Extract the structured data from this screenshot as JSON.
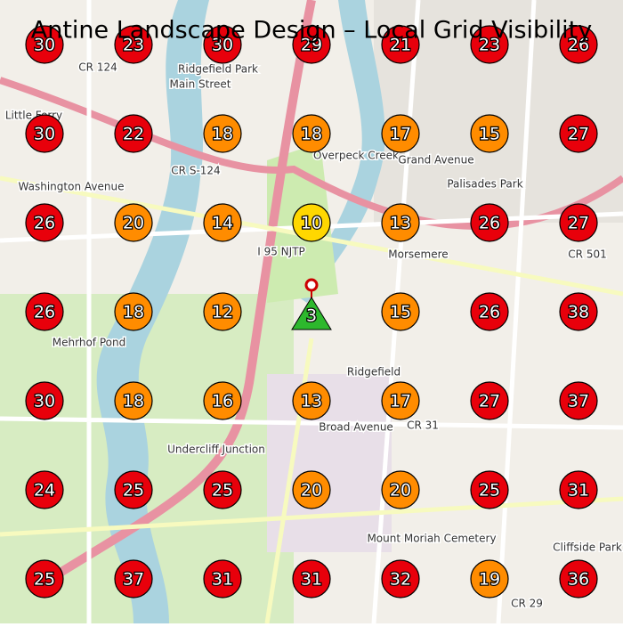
{
  "title": "Antine Landscape Design – Local Grid Visibility",
  "grid": {
    "rows": [
      [
        {
          "value": 30,
          "color": "#e8000b"
        },
        {
          "value": 23,
          "color": "#e8000b"
        },
        {
          "value": 30,
          "color": "#e8000b"
        },
        {
          "value": 29,
          "color": "#e8000b"
        },
        {
          "value": 21,
          "color": "#e8000b"
        },
        {
          "value": 23,
          "color": "#e8000b"
        },
        {
          "value": 26,
          "color": "#e8000b"
        }
      ],
      [
        {
          "value": 30,
          "color": "#e8000b"
        },
        {
          "value": 22,
          "color": "#e8000b"
        },
        {
          "value": 18,
          "color": "#ff8c00"
        },
        {
          "value": 18,
          "color": "#ff8c00"
        },
        {
          "value": 17,
          "color": "#ff8c00"
        },
        {
          "value": 15,
          "color": "#ff8c00"
        },
        {
          "value": 27,
          "color": "#e8000b"
        }
      ],
      [
        {
          "value": 26,
          "color": "#e8000b"
        },
        {
          "value": 20,
          "color": "#ff8c00"
        },
        {
          "value": 14,
          "color": "#ff8c00"
        },
        {
          "value": 10,
          "color": "#ffd700"
        },
        {
          "value": 13,
          "color": "#ff8c00"
        },
        {
          "value": 26,
          "color": "#e8000b"
        },
        {
          "value": 27,
          "color": "#e8000b"
        }
      ],
      [
        {
          "value": 26,
          "color": "#e8000b"
        },
        {
          "value": 18,
          "color": "#ff8c00"
        },
        {
          "value": 12,
          "color": "#ff8c00"
        },
        {
          "value": 3,
          "color": "#2db82d",
          "shape": "triangle"
        },
        {
          "value": 15,
          "color": "#ff8c00"
        },
        {
          "value": 26,
          "color": "#e8000b"
        },
        {
          "value": 38,
          "color": "#e8000b"
        }
      ],
      [
        {
          "value": 30,
          "color": "#e8000b"
        },
        {
          "value": 18,
          "color": "#ff8c00"
        },
        {
          "value": 16,
          "color": "#ff8c00"
        },
        {
          "value": 13,
          "color": "#ff8c00"
        },
        {
          "value": 17,
          "color": "#ff8c00"
        },
        {
          "value": 27,
          "color": "#e8000b"
        },
        {
          "value": 37,
          "color": "#e8000b"
        }
      ],
      [
        {
          "value": 24,
          "color": "#e8000b"
        },
        {
          "value": 25,
          "color": "#e8000b"
        },
        {
          "value": 25,
          "color": "#e8000b"
        },
        {
          "value": 20,
          "color": "#ff8c00"
        },
        {
          "value": 20,
          "color": "#ff8c00"
        },
        {
          "value": 25,
          "color": "#e8000b"
        },
        {
          "value": 31,
          "color": "#e8000b"
        }
      ],
      [
        {
          "value": 25,
          "color": "#e8000b"
        },
        {
          "value": 37,
          "color": "#e8000b"
        },
        {
          "value": 31,
          "color": "#e8000b"
        },
        {
          "value": 31,
          "color": "#e8000b"
        },
        {
          "value": 32,
          "color": "#e8000b"
        },
        {
          "value": 19,
          "color": "#ff8c00"
        },
        {
          "value": 36,
          "color": "#e8000b"
        }
      ]
    ]
  },
  "places": [
    "Ridgefield Park",
    "Palisades Park",
    "Ridgefield",
    "Morsemere",
    "Cliffside Park",
    "Undercliff Junction",
    "Mehrhof Pond",
    "Mount Moriah Cemetery",
    "Little Ferry",
    "Overpeck Creek",
    "CR 124",
    "CR S-124",
    "CR 31",
    "CR 501",
    "CR 29",
    "I 95 NJTP",
    "Main Street",
    "Washington Avenue",
    "Grand Avenue",
    "Broad Avenue"
  ]
}
